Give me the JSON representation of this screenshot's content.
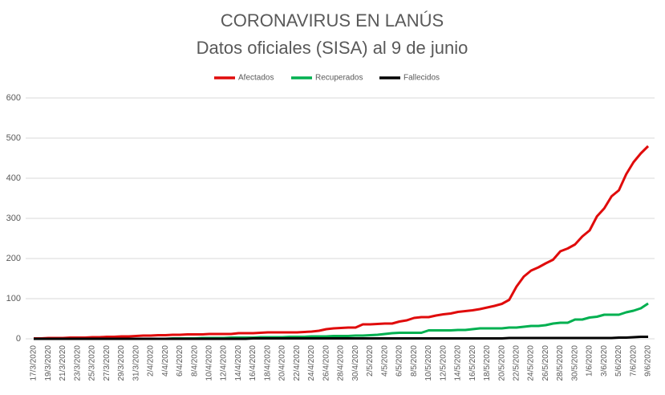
{
  "chart_data": {
    "type": "line",
    "title": "CORONAVIRUS EN LANÚS",
    "subtitle": "Datos oficiales (SISA) al 9 de junio",
    "categories": [
      "17/3/2020",
      null,
      "19/3/2020",
      null,
      "21/3/2020",
      null,
      "23/3/2020",
      null,
      "25/3/2020",
      null,
      "27/3/2020",
      null,
      "29/3/2020",
      null,
      "31/3/2020",
      null,
      "2/4/2020",
      null,
      "4/4/2020",
      null,
      "6/4/2020",
      null,
      "8/4/2020",
      null,
      "10/4/2020",
      null,
      "12/4/2020",
      null,
      "14/4/2020",
      null,
      "16/4/2020",
      null,
      "18/4/2020",
      null,
      "20/4/2020",
      null,
      "22/4/2020",
      null,
      "24/4/2020",
      null,
      "26/4/2020",
      null,
      "28/4/2020",
      null,
      "30/4/2020",
      null,
      "2/5/2020",
      null,
      "4/5/2020",
      null,
      "6/5/2020",
      null,
      "8/5/2020",
      null,
      "10/5/2020",
      null,
      "12/5/2020",
      null,
      "14/5/2020",
      null,
      "16/5/2020",
      null,
      "18/5/2020",
      null,
      "20/5/2020",
      null,
      "22/5/2020",
      null,
      "24/5/2020",
      null,
      "26/5/2020",
      null,
      "28/5/2020",
      null,
      "30/5/2020",
      null,
      "1/6/2020",
      null,
      "3/6/2020",
      null,
      "5/6/2020",
      null,
      "7/6/2020",
      null,
      "9/6/2020"
    ],
    "series": [
      {
        "name": "Afectados",
        "color": "#e00b0b",
        "values": [
          1,
          1,
          2,
          2,
          2,
          3,
          3,
          3,
          4,
          4,
          5,
          5,
          6,
          6,
          7,
          8,
          8,
          9,
          9,
          10,
          10,
          11,
          11,
          11,
          12,
          12,
          12,
          12,
          14,
          14,
          14,
          15,
          16,
          16,
          16,
          16,
          16,
          17,
          18,
          20,
          24,
          26,
          27,
          28,
          28,
          36,
          36,
          37,
          38,
          38,
          43,
          46,
          52,
          54,
          54,
          58,
          61,
          63,
          67,
          69,
          71,
          74,
          78,
          82,
          87,
          97,
          130,
          155,
          170,
          178,
          188,
          197,
          218,
          225,
          235,
          255,
          270,
          305,
          325,
          355,
          370,
          410,
          440,
          462,
          480
        ]
      },
      {
        "name": "Recuperados",
        "color": "#00b050",
        "values": [
          0,
          0,
          0,
          0,
          0,
          0,
          0,
          0,
          0,
          0,
          0,
          0,
          0,
          0,
          0,
          0,
          0,
          0,
          0,
          1,
          1,
          1,
          1,
          2,
          2,
          2,
          2,
          3,
          3,
          3,
          3,
          4,
          4,
          4,
          4,
          5,
          5,
          5,
          6,
          6,
          6,
          7,
          7,
          7,
          8,
          8,
          9,
          10,
          12,
          14,
          15,
          15,
          15,
          15,
          21,
          21,
          21,
          21,
          22,
          22,
          24,
          26,
          26,
          26,
          26,
          28,
          28,
          30,
          32,
          32,
          34,
          38,
          40,
          40,
          48,
          48,
          53,
          55,
          60,
          60,
          60,
          66,
          70,
          76,
          88
        ]
      },
      {
        "name": "Fallecidos",
        "color": "#000000",
        "values": [
          0,
          0,
          0,
          0,
          0,
          0,
          0,
          0,
          0,
          0,
          0,
          0,
          0,
          0,
          0,
          0,
          0,
          0,
          0,
          0,
          0,
          0,
          0,
          0,
          0,
          0,
          0,
          0,
          0,
          0,
          1,
          1,
          1,
          1,
          1,
          1,
          1,
          1,
          1,
          1,
          1,
          1,
          1,
          1,
          1,
          1,
          1,
          1,
          1,
          1,
          1,
          1,
          1,
          1,
          1,
          1,
          1,
          1,
          1,
          1,
          1,
          1,
          1,
          1,
          1,
          2,
          2,
          2,
          2,
          2,
          2,
          2,
          2,
          2,
          2,
          2,
          2,
          2,
          2,
          2,
          3,
          3,
          4,
          5,
          5
        ]
      }
    ],
    "ylim": [
      0,
      600
    ],
    "yticks": [
      0,
      100,
      200,
      300,
      400,
      500,
      600
    ],
    "grid": true,
    "legend": "top"
  }
}
